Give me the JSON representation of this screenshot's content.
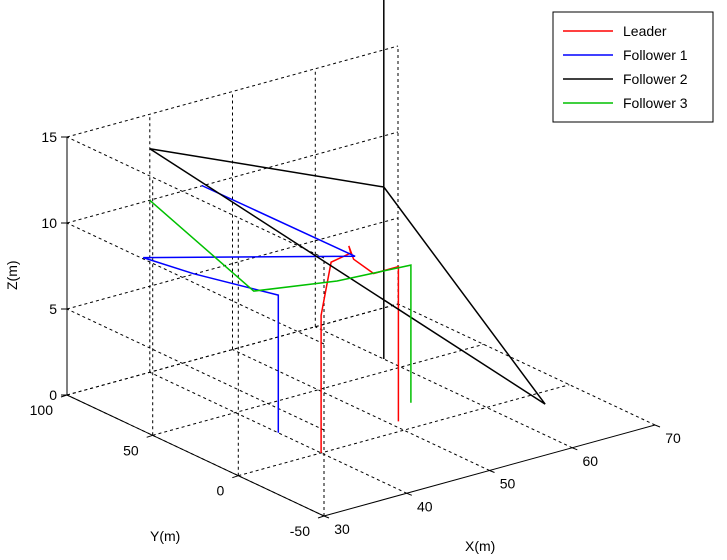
{
  "chart_data": {
    "type": "line",
    "projection": "3d",
    "xlabel": "X(m)",
    "ylabel": "Y(m)",
    "zlabel": "Z(m)",
    "xlim": [
      30,
      70
    ],
    "ylim": [
      -50,
      100
    ],
    "zlim": [
      0,
      15
    ],
    "x_ticks": [
      "30",
      "40",
      "50",
      "60",
      "70"
    ],
    "y_ticks": [
      "-50",
      "0",
      "50",
      "100"
    ],
    "z_ticks": [
      "0",
      "5",
      "10",
      "15"
    ],
    "grid": true,
    "legend_position": "top-right",
    "series": [
      {
        "name": "Leader",
        "color": "#ff0000",
        "points": [
          [
            40,
            0,
            0
          ],
          [
            40,
            0,
            4
          ],
          [
            40,
            0,
            8
          ],
          [
            41,
            -1,
            11
          ],
          [
            44,
            2,
            11
          ],
          [
            45,
            8,
            11
          ],
          [
            46,
            10,
            10
          ],
          [
            48,
            8,
            9
          ],
          [
            51,
            8,
            9
          ],
          [
            51,
            8,
            0
          ]
        ]
      },
      {
        "name": "Follower 1",
        "color": "#0000ff",
        "points": [
          [
            40,
            25,
            0
          ],
          [
            40,
            25,
            8
          ],
          [
            37,
            60,
            8
          ],
          [
            33,
            70,
            9
          ],
          [
            41,
            -15,
            12
          ],
          [
            38,
            60,
            13
          ]
        ]
      },
      {
        "name": "Follower 2",
        "color": "#000000",
        "points": [
          [
            60,
            60,
            0
          ],
          [
            60,
            60,
            10
          ],
          [
            40,
            100,
            13
          ],
          [
            65,
            -10,
            0
          ],
          [
            60,
            60,
            10
          ],
          [
            60,
            60,
            22
          ]
        ]
      },
      {
        "name": "Follower 3",
        "color": "#00c000",
        "points": [
          [
            55,
            20,
            0
          ],
          [
            55,
            20,
            8
          ],
          [
            44,
            10,
            9
          ],
          [
            36,
            20,
            9
          ],
          [
            40,
            100,
            10
          ]
        ]
      }
    ]
  },
  "legend": {
    "items": [
      {
        "label": "Leader",
        "color": "#ff0000"
      },
      {
        "label": "Follower 1",
        "color": "#0000ff"
      },
      {
        "label": "Follower 2",
        "color": "#000000"
      },
      {
        "label": "Follower 3",
        "color": "#00c000"
      }
    ]
  }
}
